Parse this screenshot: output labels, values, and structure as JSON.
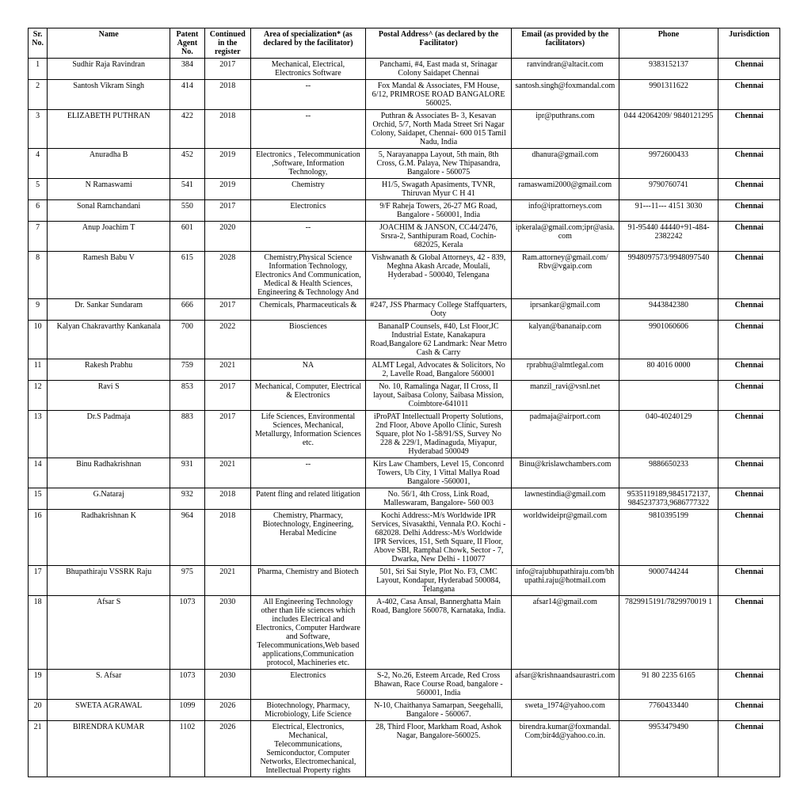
{
  "columns": [
    "Sr. No.",
    "Name",
    "Patent Agent No.",
    "Continued in the register",
    "Area of specialization* (as declared by the facilitator)",
    "Postal Address^ (as declared by the Facilitator)",
    "Email (as provided by the facilitators)",
    "Phone",
    "Jurisdiction"
  ],
  "col_classes": [
    "sr",
    "name",
    "agent",
    "cont",
    "spec",
    "addr",
    "email",
    "phone",
    "jur"
  ],
  "header_fontsize": 10,
  "cell_fontsize": 10,
  "border_color": "#000000",
  "background_color": "#ffffff",
  "text_color": "#000000",
  "rows": [
    {
      "sr": "1",
      "name": "Sudhir Raja Ravindran",
      "agent": "384",
      "cont": "2017",
      "spec": "Mechanical, Electrical, Electronics Software",
      "addr": "Panchami, #4, East mada st, Srinagar Colony Saidapet Chennai",
      "email": "ranvindran@altacit.com",
      "phone": "9383152137",
      "jur": "Chennai"
    },
    {
      "sr": "2",
      "name": "Santosh Vikram Singh",
      "agent": "414",
      "cont": "2018",
      "spec": "--",
      "addr": "Fox Mandal & Associates, FM House, 6/12, PRIMROSE ROAD BANGALORE 560025.",
      "email": "santosh.singh@foxmandal.com",
      "phone": "9901311622",
      "jur": "Chennai"
    },
    {
      "sr": "3",
      "name": "ELIZABETH PUTHRAN",
      "agent": "422",
      "cont": "2018",
      "spec": "--",
      "addr": "Puthran & Associates B- 3, Kesavan Orchid, 5/7, North Mada Street Sri Nagar Colony, Saidapet, Chennai- 600 015 Tamil Nadu, India",
      "email": "ipr@puthrans.com",
      "phone": "044 42064209/ 9840121295",
      "jur": "Chennai"
    },
    {
      "sr": "4",
      "name": "Anuradha B",
      "agent": "452",
      "cont": "2019",
      "spec": "Electronics , Telecommunication ,Software, Information Technology,",
      "addr": "5, Narayanappa Layout, 5th main, 8th Cross, G.M. Palaya, New Thipasandra, Bangalore - 560075",
      "email": "dhanura@gmail.com",
      "phone": "9972600433",
      "jur": "Chennai"
    },
    {
      "sr": "5",
      "name": "N Ramaswami",
      "agent": "541",
      "cont": "2019",
      "spec": "Chemistry",
      "addr": "H1/5, Swagath Apasiments, TVNR, Thiruvan Myur C H 41",
      "email": "ramaswami2000@gmail.com",
      "phone": "9790760741",
      "jur": "Chennai"
    },
    {
      "sr": "6",
      "name": "Sonal Ramchandani",
      "agent": "550",
      "cont": "2017",
      "spec": "Electronics",
      "addr": "9/F Raheja Towers, 26-27 MG Road, Bangalore - 560001, India",
      "email": "info@iprattorneys.com",
      "phone": "91---11--- 4151 3030",
      "jur": "Chennai"
    },
    {
      "sr": "7",
      "name": "Anup Joachim T",
      "agent": "601",
      "cont": "2020",
      "spec": "--",
      "addr": "JOACHIM & JANSON, CC44/2476, Srsra-2, Santhipuram Road, Cochin-682025, Kerala",
      "email": "ipkerala@gmail.com;ipr@asia.com",
      "phone": "91-95440 44440+91-484-2382242",
      "jur": "Chennai"
    },
    {
      "sr": "8",
      "name": "Ramesh Babu V",
      "agent": "615",
      "cont": "2028",
      "spec": "Chemistry,Physical Science Information Technology, Electronics And Communication, Medical & Health Sciences, Engineering & Technology And",
      "addr": "Vishwanath & Global Attorneys, 42 - 839, Meghna Akash Arcade, Moulali, Hyderabad - 500040, Telengana",
      "email": "Ram.attorney@gmail.com/ Rbv@vgaip.com",
      "phone": "9948097573/9948097540",
      "jur": "Chennai"
    },
    {
      "sr": "9",
      "name": "Dr. Sankar Sundaram",
      "agent": "666",
      "cont": "2017",
      "spec": "Chemicals, Pharmaceuticals &",
      "addr": "#247, JSS Pharmacy College Staffquarters, Ooty",
      "email": "iprsankar@gmail.com",
      "phone": "9443842380",
      "jur": "Chennai"
    },
    {
      "sr": "10",
      "name": "Kalyan Chakravarthy Kankanala",
      "agent": "700",
      "cont": "2022",
      "spec": "Biosciences",
      "addr": "BananaIP Counsels, #40, Lst Floor,JC Industrial Estate, Kanakapura Road,Bangalore 62 Landmark: Near Metro Cash & Carry",
      "email": "kalyan@bananaip.com",
      "phone": "9901060606",
      "jur": "Chennai"
    },
    {
      "sr": "11",
      "name": "Rakesh Prabhu",
      "agent": "759",
      "cont": "2021",
      "spec": "NA",
      "addr": "ALMT Legal, Advocates & Solicitors, No 2, Lavelle Road, Bangalore 560001",
      "email": "rprabhu@almtlegal.com",
      "phone": "80 4016 0000",
      "jur": "Chennai"
    },
    {
      "sr": "12",
      "name": "Ravi S",
      "agent": "853",
      "cont": "2017",
      "spec": "Mechanical, Computer, Electrical & Electronics",
      "addr": "No. 10, Ramalinga Nagar, II Cross, II layout, Saibasa Colony, Saibasa Mission, Coimbtore-641011",
      "email": "manzil_ravi@vsnl.net",
      "phone": "",
      "jur": "Chennai"
    },
    {
      "sr": "13",
      "name": "Dr.S Padmaja",
      "agent": "883",
      "cont": "2017",
      "spec": "Life Sciences, Environmental Sciences, Mechanical, Metallurgy, Information Sciences etc.",
      "addr": "iProPAT Intellectuall Property Solutions, 2nd Floor, Above Apollo Clinic, Suresh Square, plot No 1-58/91/SS, Survey No 228 & 229/1, Madinaguda, Miyapur, Hyderabad 500049",
      "email": "padmaja@airport.com",
      "phone": "040-40240129",
      "jur": "Chennai"
    },
    {
      "sr": "14",
      "name": "Binu Radhakrishnan",
      "agent": "931",
      "cont": "2021",
      "spec": "--",
      "addr": "Kirs Law Chambers, Level 15, Conconrd Towers, Ub City, 1 Vittal Mallya Road Bangalore -560001,",
      "email": "Binu@krislawchambers.com",
      "phone": "9886650233",
      "jur": "Chennai"
    },
    {
      "sr": "15",
      "name": "G.Nataraj",
      "agent": "932",
      "cont": "2018",
      "spec": "Patent fling and related litigation",
      "addr": "No. 56/1, 4th Cross, Link Road, Malleswaram, Bangalore- 560 003",
      "email": "lawnestindia@gmail.com",
      "phone": "9535119189,9845172137, 9845237373,9686777322",
      "jur": "Chennai"
    },
    {
      "sr": "16",
      "name": "Radhakrishnan K",
      "agent": "964",
      "cont": "2018",
      "spec": "Chemistry, Pharmacy, Biotechnology, Engineering, Herabal Medicine",
      "addr": "Kochi Address:-M/s Worldwide IPR Services, Sivasakthi, Vennala P.O. Kochi - 682028. Delhi Address:-M/s Worldwide IPR Services, 151, Seth Square, II Floor, Above SBI, Ramphal Chowk, Sector - 7, Dwarka, New Delhi - 110077",
      "email": "worldwideipr@gmail.com",
      "phone": "9810395199",
      "jur": "Chennai"
    },
    {
      "sr": "17",
      "name": "Bhupathiraju VSSRK Raju",
      "agent": "975",
      "cont": "2021",
      "spec": "Pharma, Chemistry and Biotech",
      "addr": "501, Sri Sai Style, Plot No. F3, CMC Layout, Kondapur, Hyderabad 500084, Telangana",
      "email": "info@rajubhupathiraju.com/bhupathi.raju@hotmail.com",
      "phone": "9000744244",
      "jur": "Chennai"
    },
    {
      "sr": "18",
      "name": "Afsar S",
      "agent": "1073",
      "cont": "2030",
      "spec": "All Engineering Technology other than life sciences which includes Electrical and Electronics, Computer Hardware and Software, Telecommunications,Web based applications,Communication protocol, Machineries etc.",
      "addr": "A-402, Casa Ansal, Bannerghatta Main Road, Banglore 560078, Karnataka, India.",
      "email": "afsar14@gmail.com",
      "phone": "7829915191/7829970019 1",
      "jur": "Chennai"
    },
    {
      "sr": "19",
      "name": "S. Afsar",
      "agent": "1073",
      "cont": "2030",
      "spec": "Electronics",
      "addr": "S-2, No.26, Esteem Arcade, Red Cross Bhawan, Race Course Road, bangalore - 560001, India",
      "email": "afsar@krishnaandsaurastri.com",
      "phone": "91 80 2235 6165",
      "jur": "Chennai"
    },
    {
      "sr": "20",
      "name": "SWETA AGRAWAL",
      "agent": "1099",
      "cont": "2026",
      "spec": "Biotechnology, Pharmacy, Microbiology, Life Science",
      "addr": "N-10, Chaithanya Samarpan, Seegehalli, Bangalore - 560067.",
      "email": "sweta_1974@yahoo.com",
      "phone": "7760433440",
      "jur": "Chennai"
    },
    {
      "sr": "21",
      "name": "BIRENDRA KUMAR",
      "agent": "1102",
      "cont": "2026",
      "spec": "Electrical, Electronics, Mechanical, Telecommunications, Semiconductor, Computer Networks, Electromechanical, Intellectual Property rights",
      "addr": "28, Third Floor, Markham Road, Ashok Nagar, Bangalore-560025.",
      "email": "birendra.kumar@foxmandal. Com;bir4d@yahoo.co.in.",
      "phone": "9953479490",
      "jur": "Chennai"
    }
  ]
}
